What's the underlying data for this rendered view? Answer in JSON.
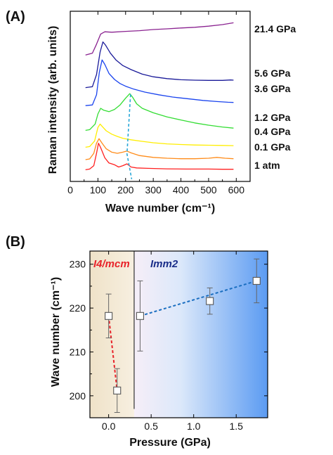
{
  "chart_data": [
    {
      "panel": "(A)",
      "type": "line",
      "xlabel": "Wave number (cm⁻¹)",
      "ylabel": "Raman intensity (arb. units)",
      "xlim": [
        0,
        650
      ],
      "xticks": [
        "0",
        "100",
        "200",
        "300",
        "400",
        "500",
        "600"
      ],
      "y_ticks_visible": false,
      "grid": false,
      "legend": "labels at right end of each trace",
      "series": [
        {
          "name": "1 atm",
          "color": "#ff2020",
          "offset": 0.0,
          "points": [
            [
              55,
              0.02
            ],
            [
              70,
              0.05
            ],
            [
              85,
              0.2
            ],
            [
              95,
              0.75
            ],
            [
              102,
              1.2
            ],
            [
              110,
              1.0
            ],
            [
              125,
              0.55
            ],
            [
              140,
              0.32
            ],
            [
              160,
              0.24
            ],
            [
              175,
              0.14
            ],
            [
              190,
              0.2
            ],
            [
              205,
              0.28
            ],
            [
              220,
              0.14
            ],
            [
              240,
              0.1
            ],
            [
              280,
              0.08
            ],
            [
              350,
              0.06
            ],
            [
              420,
              0.05
            ],
            [
              500,
              0.05
            ],
            [
              550,
              0.04
            ],
            [
              590,
              0.04
            ]
          ]
        },
        {
          "name": "0.1 GPa",
          "color": "#ff8c1a",
          "offset": 0.45,
          "points": [
            [
              55,
              0.02
            ],
            [
              70,
              0.05
            ],
            [
              85,
              0.3
            ],
            [
              95,
              0.75
            ],
            [
              104,
              0.95
            ],
            [
              115,
              0.75
            ],
            [
              130,
              0.5
            ],
            [
              150,
              0.35
            ],
            [
              170,
              0.3
            ],
            [
              190,
              0.35
            ],
            [
              205,
              0.4
            ],
            [
              220,
              0.32
            ],
            [
              250,
              0.2
            ],
            [
              300,
              0.12
            ],
            [
              350,
              0.08
            ],
            [
              400,
              0.06
            ],
            [
              450,
              0.06
            ],
            [
              500,
              0.08
            ],
            [
              530,
              0.12
            ],
            [
              560,
              0.08
            ],
            [
              590,
              0.06
            ]
          ]
        },
        {
          "name": "0.4 GPa",
          "color": "#ffee00",
          "offset": 1.0,
          "points": [
            [
              55,
              0.02
            ],
            [
              70,
              0.05
            ],
            [
              88,
              0.3
            ],
            [
              100,
              0.9
            ],
            [
              108,
              1.05
            ],
            [
              115,
              0.95
            ],
            [
              130,
              0.75
            ],
            [
              150,
              0.6
            ],
            [
              170,
              0.5
            ],
            [
              190,
              0.42
            ],
            [
              220,
              0.35
            ],
            [
              260,
              0.28
            ],
            [
              300,
              0.22
            ],
            [
              350,
              0.17
            ],
            [
              400,
              0.14
            ],
            [
              450,
              0.12
            ],
            [
              500,
              0.11
            ],
            [
              550,
              0.1
            ],
            [
              590,
              0.09
            ]
          ]
        },
        {
          "name": "1.2 GPa",
          "color": "#33dd33",
          "offset": 1.75,
          "points": [
            [
              55,
              0.02
            ],
            [
              70,
              0.05
            ],
            [
              90,
              0.3
            ],
            [
              100,
              0.75
            ],
            [
              110,
              1.0
            ],
            [
              120,
              0.92
            ],
            [
              140,
              0.85
            ],
            [
              160,
              0.95
            ],
            [
              180,
              1.15
            ],
            [
              200,
              1.45
            ],
            [
              215,
              1.65
            ],
            [
              225,
              1.5
            ],
            [
              240,
              1.2
            ],
            [
              260,
              1.0
            ],
            [
              300,
              0.8
            ],
            [
              350,
              0.62
            ],
            [
              400,
              0.48
            ],
            [
              450,
              0.35
            ],
            [
              500,
              0.25
            ],
            [
              550,
              0.17
            ],
            [
              590,
              0.12
            ]
          ]
        },
        {
          "name": "3.6 GPa",
          "color": "#1a44ee",
          "offset": 2.85,
          "points": [
            [
              55,
              0.02
            ],
            [
              80,
              0.05
            ],
            [
              95,
              0.5
            ],
            [
              105,
              1.5
            ],
            [
              115,
              2.05
            ],
            [
              125,
              1.85
            ],
            [
              140,
              1.45
            ],
            [
              160,
              1.18
            ],
            [
              180,
              1.0
            ],
            [
              200,
              0.88
            ],
            [
              230,
              0.75
            ],
            [
              270,
              0.62
            ],
            [
              320,
              0.5
            ],
            [
              370,
              0.4
            ],
            [
              420,
              0.33
            ],
            [
              480,
              0.25
            ],
            [
              530,
              0.2
            ],
            [
              570,
              0.17
            ],
            [
              590,
              0.16
            ]
          ]
        },
        {
          "name": "5.6 GPa",
          "color": "#1a1a99",
          "offset": 3.65,
          "points": [
            [
              55,
              0.02
            ],
            [
              80,
              0.06
            ],
            [
              95,
              0.6
            ],
            [
              108,
              1.6
            ],
            [
              118,
              2.05
            ],
            [
              128,
              1.9
            ],
            [
              145,
              1.55
            ],
            [
              165,
              1.25
            ],
            [
              190,
              1.0
            ],
            [
              220,
              0.82
            ],
            [
              260,
              0.62
            ],
            [
              300,
              0.5
            ],
            [
              350,
              0.42
            ],
            [
              400,
              0.37
            ],
            [
              450,
              0.35
            ],
            [
              500,
              0.34
            ],
            [
              550,
              0.34
            ],
            [
              580,
              0.36
            ],
            [
              590,
              0.35
            ]
          ]
        },
        {
          "name": "21.4 GPa",
          "color": "#8a2290",
          "offset": 5.1,
          "points": [
            [
              55,
              0.02
            ],
            [
              80,
              0.1
            ],
            [
              95,
              0.5
            ],
            [
              110,
              0.95
            ],
            [
              125,
              1.05
            ],
            [
              150,
              1.03
            ],
            [
              200,
              1.07
            ],
            [
              250,
              1.1
            ],
            [
              300,
              1.15
            ],
            [
              350,
              1.18
            ],
            [
              400,
              1.22
            ],
            [
              450,
              1.25
            ],
            [
              500,
              1.3
            ],
            [
              550,
              1.37
            ],
            [
              590,
              1.45
            ]
          ]
        }
      ],
      "annotations": [
        {
          "type": "dashed-line",
          "color": "#2aa8d8"
        }
      ]
    },
    {
      "panel": "(B)",
      "type": "scatter",
      "xlabel": "Pressure (GPa)",
      "ylabel": "Wave number (cm⁻¹)",
      "xlim": [
        -0.22,
        1.87
      ],
      "ylim": [
        195,
        233
      ],
      "xticks": [
        0.0,
        0.5,
        1.0,
        1.5
      ],
      "xtick_labels": [
        "0.0",
        "0.5",
        "1.0",
        "1.5"
      ],
      "yticks": [
        200,
        210,
        220,
        230
      ],
      "phase_boundary_x": 0.3,
      "phases": [
        {
          "label": "I4/mcm",
          "color": "#e8232a"
        },
        {
          "label": "Imm2",
          "color": "#1a2e8a"
        }
      ],
      "points": [
        {
          "x": 0.0,
          "y": 218.2,
          "err": 5.0
        },
        {
          "x": 0.1,
          "y": 201.2,
          "err": 5.0
        },
        {
          "x": 0.37,
          "y": 218.2,
          "err": 8.0
        },
        {
          "x": 1.19,
          "y": 221.6,
          "err": 3.0
        },
        {
          "x": 1.74,
          "y": 226.2,
          "err": 5.0
        }
      ],
      "fits": [
        {
          "from": 0,
          "to": 1,
          "color": "#e8232a"
        },
        {
          "from": 2,
          "to": 4,
          "color": "#1a6ec0"
        }
      ]
    }
  ]
}
